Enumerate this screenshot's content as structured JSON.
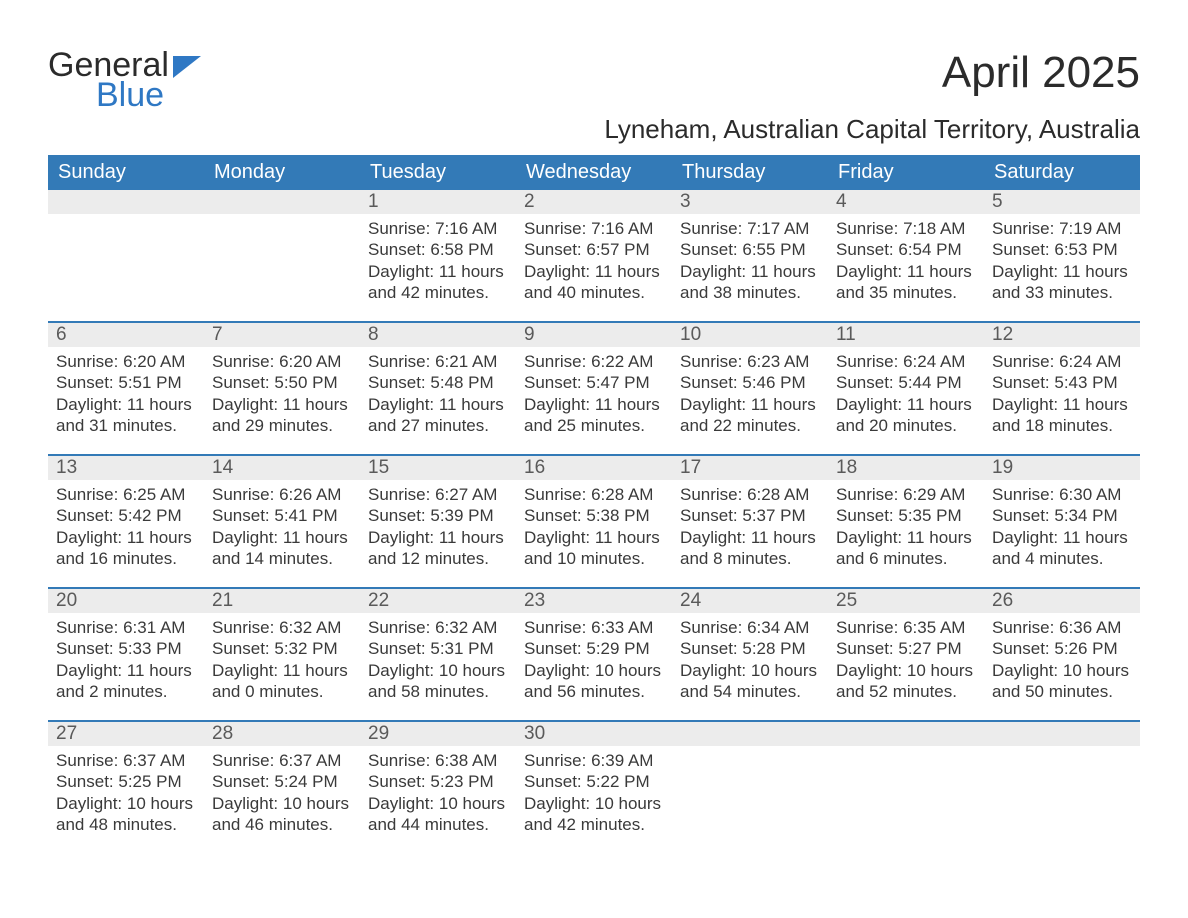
{
  "logo": {
    "word1": "General",
    "word2": "Blue"
  },
  "title": {
    "month": "April 2025",
    "location": "Lyneham, Australian Capital Territory, Australia"
  },
  "colors": {
    "header_bg": "#337ab7",
    "header_text": "#ffffff",
    "daynum_bg": "#ececec",
    "daynum_text": "#5a5a5a",
    "body_text": "#3a3a3a",
    "week_border": "#337ab7",
    "logo_blue": "#2f78c4",
    "page_bg": "#ffffff"
  },
  "typography": {
    "month_fontsize": 44,
    "location_fontsize": 26,
    "header_fontsize": 20,
    "daynum_fontsize": 19,
    "body_fontsize": 17,
    "logo_fontsize": 34
  },
  "weekdays": [
    "Sunday",
    "Monday",
    "Tuesday",
    "Wednesday",
    "Thursday",
    "Friday",
    "Saturday"
  ],
  "weeks": [
    [
      null,
      null,
      {
        "n": "1",
        "sunrise": "7:16 AM",
        "sunset": "6:58 PM",
        "daylight": "11 hours and 42 minutes."
      },
      {
        "n": "2",
        "sunrise": "7:16 AM",
        "sunset": "6:57 PM",
        "daylight": "11 hours and 40 minutes."
      },
      {
        "n": "3",
        "sunrise": "7:17 AM",
        "sunset": "6:55 PM",
        "daylight": "11 hours and 38 minutes."
      },
      {
        "n": "4",
        "sunrise": "7:18 AM",
        "sunset": "6:54 PM",
        "daylight": "11 hours and 35 minutes."
      },
      {
        "n": "5",
        "sunrise": "7:19 AM",
        "sunset": "6:53 PM",
        "daylight": "11 hours and 33 minutes."
      }
    ],
    [
      {
        "n": "6",
        "sunrise": "6:20 AM",
        "sunset": "5:51 PM",
        "daylight": "11 hours and 31 minutes."
      },
      {
        "n": "7",
        "sunrise": "6:20 AM",
        "sunset": "5:50 PM",
        "daylight": "11 hours and 29 minutes."
      },
      {
        "n": "8",
        "sunrise": "6:21 AM",
        "sunset": "5:48 PM",
        "daylight": "11 hours and 27 minutes."
      },
      {
        "n": "9",
        "sunrise": "6:22 AM",
        "sunset": "5:47 PM",
        "daylight": "11 hours and 25 minutes."
      },
      {
        "n": "10",
        "sunrise": "6:23 AM",
        "sunset": "5:46 PM",
        "daylight": "11 hours and 22 minutes."
      },
      {
        "n": "11",
        "sunrise": "6:24 AM",
        "sunset": "5:44 PM",
        "daylight": "11 hours and 20 minutes."
      },
      {
        "n": "12",
        "sunrise": "6:24 AM",
        "sunset": "5:43 PM",
        "daylight": "11 hours and 18 minutes."
      }
    ],
    [
      {
        "n": "13",
        "sunrise": "6:25 AM",
        "sunset": "5:42 PM",
        "daylight": "11 hours and 16 minutes."
      },
      {
        "n": "14",
        "sunrise": "6:26 AM",
        "sunset": "5:41 PM",
        "daylight": "11 hours and 14 minutes."
      },
      {
        "n": "15",
        "sunrise": "6:27 AM",
        "sunset": "5:39 PM",
        "daylight": "11 hours and 12 minutes."
      },
      {
        "n": "16",
        "sunrise": "6:28 AM",
        "sunset": "5:38 PM",
        "daylight": "11 hours and 10 minutes."
      },
      {
        "n": "17",
        "sunrise": "6:28 AM",
        "sunset": "5:37 PM",
        "daylight": "11 hours and 8 minutes."
      },
      {
        "n": "18",
        "sunrise": "6:29 AM",
        "sunset": "5:35 PM",
        "daylight": "11 hours and 6 minutes."
      },
      {
        "n": "19",
        "sunrise": "6:30 AM",
        "sunset": "5:34 PM",
        "daylight": "11 hours and 4 minutes."
      }
    ],
    [
      {
        "n": "20",
        "sunrise": "6:31 AM",
        "sunset": "5:33 PM",
        "daylight": "11 hours and 2 minutes."
      },
      {
        "n": "21",
        "sunrise": "6:32 AM",
        "sunset": "5:32 PM",
        "daylight": "11 hours and 0 minutes."
      },
      {
        "n": "22",
        "sunrise": "6:32 AM",
        "sunset": "5:31 PM",
        "daylight": "10 hours and 58 minutes."
      },
      {
        "n": "23",
        "sunrise": "6:33 AM",
        "sunset": "5:29 PM",
        "daylight": "10 hours and 56 minutes."
      },
      {
        "n": "24",
        "sunrise": "6:34 AM",
        "sunset": "5:28 PM",
        "daylight": "10 hours and 54 minutes."
      },
      {
        "n": "25",
        "sunrise": "6:35 AM",
        "sunset": "5:27 PM",
        "daylight": "10 hours and 52 minutes."
      },
      {
        "n": "26",
        "sunrise": "6:36 AM",
        "sunset": "5:26 PM",
        "daylight": "10 hours and 50 minutes."
      }
    ],
    [
      {
        "n": "27",
        "sunrise": "6:37 AM",
        "sunset": "5:25 PM",
        "daylight": "10 hours and 48 minutes."
      },
      {
        "n": "28",
        "sunrise": "6:37 AM",
        "sunset": "5:24 PM",
        "daylight": "10 hours and 46 minutes."
      },
      {
        "n": "29",
        "sunrise": "6:38 AM",
        "sunset": "5:23 PM",
        "daylight": "10 hours and 44 minutes."
      },
      {
        "n": "30",
        "sunrise": "6:39 AM",
        "sunset": "5:22 PM",
        "daylight": "10 hours and 42 minutes."
      },
      null,
      null,
      null
    ]
  ],
  "labels": {
    "sunrise": "Sunrise: ",
    "sunset": "Sunset: ",
    "daylight": "Daylight: "
  }
}
